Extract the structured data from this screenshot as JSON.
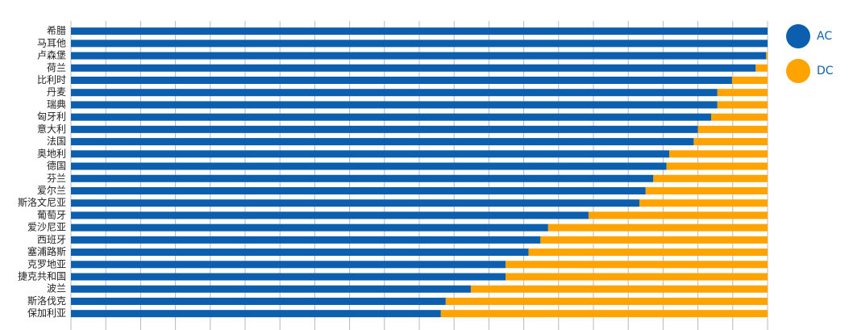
{
  "chart_data": {
    "type": "stacked_bar_h",
    "categories": [
      "希腊",
      "马耳他",
      "卢森堡",
      "荷兰",
      "比利时",
      "丹麦",
      "瑞典",
      "匈牙利",
      "意大利",
      "法国",
      "奥地利",
      "德国",
      "芬兰",
      "爱尔兰",
      "斯洛文尼亚",
      "葡萄牙",
      "爱沙尼亚",
      "西班牙",
      "塞浦路斯",
      "克罗地亚",
      "捷克共和国",
      "波兰",
      "斯洛伐克",
      "保加利亚"
    ],
    "series": [
      {
        "name": "AC",
        "color": "#0b5fae",
        "values": [
          100,
          100,
          99.8,
          98.3,
          94.9,
          92.8,
          92.8,
          91.9,
          90.0,
          89.4,
          85.9,
          85.5,
          83.6,
          82.5,
          81.6,
          74.3,
          68.5,
          67.4,
          65.7,
          62.4,
          62.4,
          57.4,
          53.8,
          53.1
        ]
      },
      {
        "name": "DC",
        "color": "#ffa300",
        "values": [
          0,
          0,
          0.2,
          1.7,
          5.1,
          7.2,
          7.2,
          8.1,
          10.0,
          10.6,
          14.1,
          14.5,
          16.4,
          17.5,
          18.4,
          25.7,
          31.5,
          32.6,
          34.3,
          37.6,
          37.6,
          42.6,
          46.2,
          46.9
        ]
      }
    ],
    "xlim": [
      0,
      100
    ],
    "xticks": [
      0,
      5,
      10,
      15,
      20,
      25,
      30,
      35,
      40,
      45,
      50,
      55,
      60,
      65,
      70,
      75,
      80,
      85,
      90,
      95,
      100
    ],
    "grid": true,
    "legend": "top-right"
  }
}
